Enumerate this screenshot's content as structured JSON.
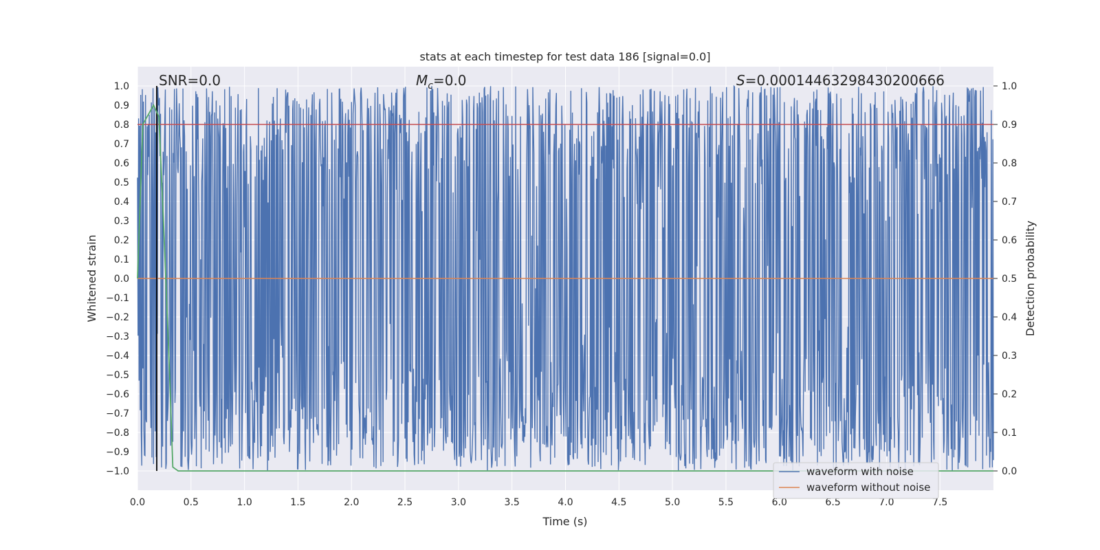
{
  "chart_data": {
    "type": "line",
    "title": "stats at each timestep for test data 186 [signal=0.0]",
    "xlabel": "Time (s)",
    "ylabel": "Whitened strain",
    "y2label": "Detection probability",
    "xlim": [
      0.0,
      8.0
    ],
    "ylim": [
      -1.1,
      1.1
    ],
    "y2lim": [
      -0.05,
      1.05
    ],
    "xticks": [
      "0.0",
      "0.5",
      "1.0",
      "1.5",
      "2.0",
      "2.5",
      "3.0",
      "3.5",
      "4.0",
      "4.5",
      "5.0",
      "5.5",
      "6.0",
      "6.5",
      "7.0",
      "7.5"
    ],
    "yticks": [
      "1.0",
      "0.9",
      "0.8",
      "0.7",
      "0.6",
      "0.5",
      "0.4",
      "0.3",
      "0.2",
      "0.1",
      "0.0",
      "−0.1",
      "−0.2",
      "−0.3",
      "−0.4",
      "−0.5",
      "−0.6",
      "−0.7",
      "−0.8",
      "−0.9",
      "−1.0"
    ],
    "y2ticks": [
      "1.0",
      "0.9",
      "0.8",
      "0.7",
      "0.6",
      "0.5",
      "0.4",
      "0.3",
      "0.2",
      "0.1",
      "0.0"
    ],
    "annotations": {
      "snr": "SNR=0.0",
      "mc_symbol": "M",
      "mc_sub": "c",
      "mc_value": "=0.0",
      "s_symbol": "S",
      "s_value": "=0.00014463298430200666"
    },
    "series": [
      {
        "name": "waveform with noise",
        "color": "#4c72b0",
        "description_range": [
          -1.0,
          1.0
        ]
      },
      {
        "name": "waveform without noise",
        "color": "#dd8452",
        "values_constant": 0.0
      },
      {
        "color": "#55a868",
        "axis": "right",
        "x": [
          0.0,
          0.05,
          0.15,
          0.2,
          0.25,
          0.3,
          0.33,
          0.38,
          8.0
        ],
        "y": [
          0.5,
          0.9,
          0.95,
          0.92,
          0.6,
          0.25,
          0.01,
          0.0,
          0.0
        ]
      },
      {
        "color": "#c44e52",
        "axis": "right",
        "x": [
          0.0,
          8.0
        ],
        "y": [
          0.9,
          0.9
        ]
      }
    ],
    "vline": {
      "x": 0.18,
      "color": "#000000"
    },
    "legend_placement": "lower-right",
    "grid": true,
    "background": "#eaeaf2"
  }
}
